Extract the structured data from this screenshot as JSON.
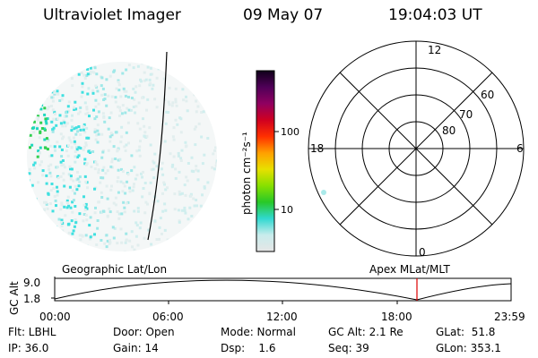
{
  "header": {
    "instrument": "Ultraviolet Imager",
    "date": "09 May 07",
    "time": "19:04:03 UT"
  },
  "colorbar": {
    "unit_label": "photon cm⁻²s⁻¹",
    "ticks": [
      "100",
      "10"
    ],
    "stops": [
      "#e6e6e6",
      "#c8ecec",
      "#30d8d0",
      "#28c828",
      "#88e000",
      "#e8e000",
      "#ffa000",
      "#ff3000",
      "#d00020",
      "#900060",
      "#500058",
      "#10001a"
    ]
  },
  "polar_plot": {
    "clock_labels": {
      "top": "12",
      "left": "18",
      "right": "6",
      "bottom": "0"
    },
    "lat_labels": [
      "60",
      "70",
      "80"
    ]
  },
  "timeline": {
    "left_label": "Geographic Lat/Lon",
    "right_label": "Apex  MLat/MLT",
    "y_axis_label": "GC Alt",
    "y_ticks": [
      "9.0",
      "1.8"
    ],
    "x_ticks": [
      "00:00",
      "06:00",
      "12:00",
      "18:00",
      "23:59"
    ],
    "marker_color": "#dd0000"
  },
  "status": {
    "row1": {
      "filter": "Flt: LBHL",
      "door": "Door: Open",
      "mode": "Mode: Normal",
      "gc_alt": "GC Alt: 2.1 Re",
      "glat": "GLat:  51.8"
    },
    "row2": {
      "ip": "IP: 36.0",
      "gain": "Gain: 14",
      "dsp": "Dsp:    1.6",
      "seq": "Seq: 39",
      "glon": "GLon: 353.1"
    }
  }
}
